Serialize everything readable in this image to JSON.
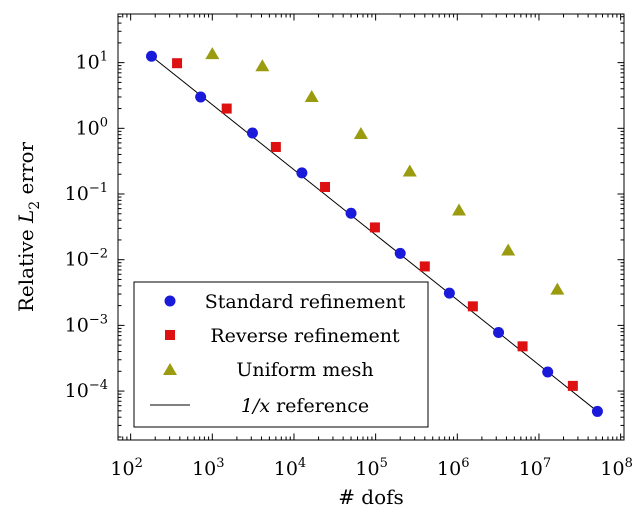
{
  "chart_data": {
    "type": "scatter",
    "x_scale": "log",
    "y_scale": "log",
    "xlabel": "# dofs",
    "ylabel_prefix": "Relative ",
    "ylabel_symbol": "L",
    "ylabel_subscript": "2",
    "ylabel_suffix": " error",
    "xlim": [
      70,
      110000000
    ],
    "ylim": [
      1.8e-05,
      55
    ],
    "x_ticks": [
      {
        "value": 100,
        "base": "10",
        "exp": "2"
      },
      {
        "value": 1000,
        "base": "10",
        "exp": "3"
      },
      {
        "value": 10000,
        "base": "10",
        "exp": "4"
      },
      {
        "value": 100000,
        "base": "10",
        "exp": "5"
      },
      {
        "value": 1000000,
        "base": "10",
        "exp": "6"
      },
      {
        "value": 10000000,
        "base": "10",
        "exp": "7"
      },
      {
        "value": 100000000,
        "base": "10",
        "exp": "8"
      }
    ],
    "y_ticks": [
      {
        "value": 0.0001,
        "base": "10",
        "exp": "−4"
      },
      {
        "value": 0.001,
        "base": "10",
        "exp": "−3"
      },
      {
        "value": 0.01,
        "base": "10",
        "exp": "−2"
      },
      {
        "value": 0.1,
        "base": "10",
        "exp": "−1"
      },
      {
        "value": 1,
        "base": "10",
        "exp": "0"
      },
      {
        "value": 10,
        "base": "10",
        "exp": "1"
      }
    ],
    "legend_position": "bottom-left",
    "series": [
      {
        "name": "Standard refinement",
        "marker": "circle",
        "color": "#1a1adb",
        "x": [
          180,
          720,
          3100,
          12500,
          50000,
          200000,
          800000,
          3200000,
          12800000,
          52000000
        ],
        "y": [
          12.5,
          3.0,
          0.85,
          0.21,
          0.051,
          0.0125,
          0.0031,
          0.00078,
          0.000195,
          4.9e-05
        ]
      },
      {
        "name": "Reverse refinement",
        "marker": "square",
        "color": "#dd1111",
        "x": [
          370,
          1500,
          6000,
          24000,
          98000,
          400000,
          1550000,
          6300000,
          26000000
        ],
        "y": [
          9.8,
          2.0,
          0.52,
          0.128,
          0.031,
          0.0079,
          0.00195,
          0.00048,
          0.00012
        ]
      },
      {
        "name": "Uniform mesh",
        "marker": "triangle",
        "color": "#9b9b10",
        "x": [
          1000,
          4100,
          16500,
          66000,
          262000,
          1050000,
          4200000,
          16800000
        ],
        "y": [
          13.5,
          8.8,
          3.0,
          0.82,
          0.22,
          0.056,
          0.0138,
          0.0035
        ]
      }
    ],
    "reference": {
      "label_math": "1/x",
      "label_rest": " reference",
      "color": "#000000",
      "x_start": 180,
      "x_end": 52000000,
      "y_start": 12.5,
      "y_end": 4.9e-05
    }
  }
}
